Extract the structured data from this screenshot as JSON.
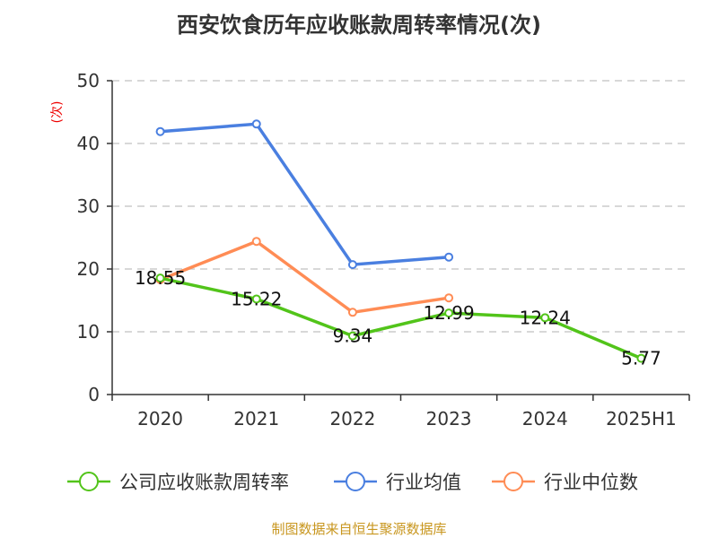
{
  "chart_data": {
    "type": "line",
    "title": "西安饮食历年应收账款周转率情况(次)",
    "ylabel": "(次)",
    "ylim": [
      0,
      50
    ],
    "yticks": [
      0,
      10,
      20,
      30,
      40,
      50
    ],
    "grid": true,
    "legend_position": "bottom",
    "categories": [
      "2020",
      "2021",
      "2022",
      "2023",
      "2024",
      "2025H1"
    ],
    "series": [
      {
        "name": "公司应收账款周转率",
        "color": "#52c41a",
        "values": [
          18.55,
          15.22,
          9.34,
          12.99,
          12.24,
          5.77
        ],
        "labels": [
          "18.55",
          "15.22",
          "9.34",
          "12.99",
          "12.24",
          "5.77"
        ]
      },
      {
        "name": "行业均值",
        "color": "#4a7fe0",
        "values": [
          41.9,
          43.1,
          20.7,
          21.9,
          null,
          null
        ]
      },
      {
        "name": "行业中位数",
        "color": "#ff8c55",
        "values": [
          18.3,
          24.4,
          13.1,
          15.4,
          null,
          null
        ]
      }
    ]
  },
  "footer": "制图数据来自恒生聚源数据库"
}
